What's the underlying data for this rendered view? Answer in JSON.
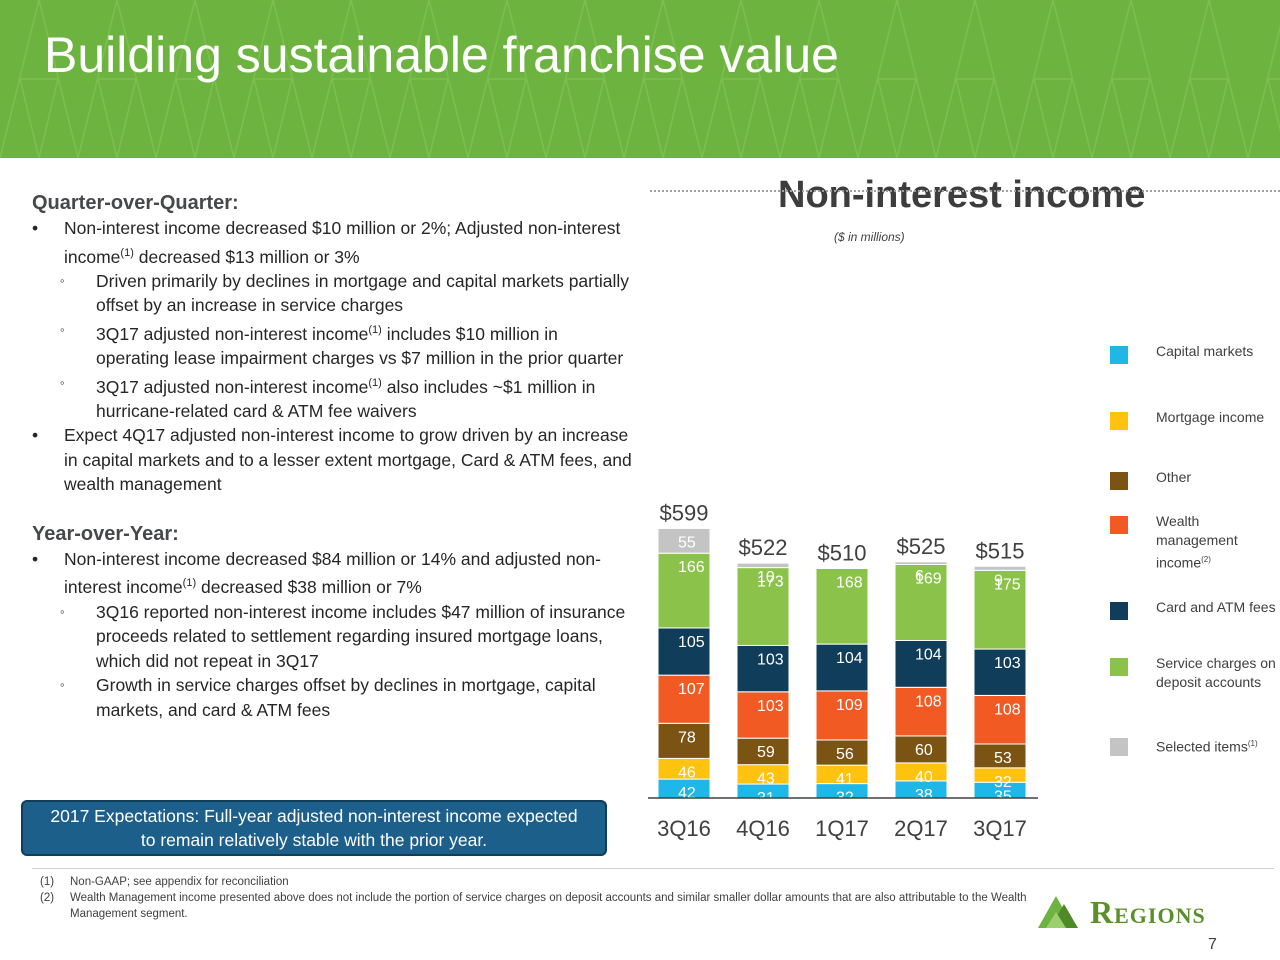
{
  "header": {
    "title": "Building sustainable franchise value"
  },
  "left": {
    "qoq_head": "Quarter-over-Quarter:",
    "qoq_b1": "Non-interest income decreased $10 million or 2%;  Adjusted non-interest income",
    "qoq_b1_sup": "(1)",
    "qoq_b1_tail": " decreased $13 million or 3%",
    "qoq_s1": "Driven primarily by declines in mortgage and capital markets partially offset by an increase in service charges",
    "qoq_s2a": "3Q17 adjusted non-interest income",
    "qoq_s2_sup": "(1)",
    "qoq_s2b": " includes $10 million in operating lease impairment charges vs $7 million in the prior quarter",
    "qoq_s3a": "3Q17 adjusted non-interest income",
    "qoq_s3_sup": "(1)",
    "qoq_s3b": " also includes ~$1 million in hurricane-related card & ATM fee waivers",
    "qoq_b2": "Expect 4Q17 adjusted non-interest income to grow driven by an increase in capital markets and to a lesser extent mortgage, Card & ATM fees, and wealth management",
    "yoy_head": "Year-over-Year:",
    "yoy_b1a": "Non-interest income decreased $84 million or 14% and adjusted non-interest income",
    "yoy_b1_sup": "(1)",
    "yoy_b1b": " decreased $38 million or 7%",
    "yoy_s1": "3Q16 reported non-interest income includes $47 million of insurance proceeds related to settlement regarding insured mortgage loans, which did not repeat in 3Q17",
    "yoy_s2": "Growth in service charges offset by declines in mortgage, capital markets, and card & ATM fees",
    "bullet": "•",
    "sub_bullet": "◦"
  },
  "expectations": {
    "line1": "2017 Expectations: Full-year adjusted non-interest income expected",
    "line2": "to remain relatively stable with the prior year."
  },
  "chart_data": {
    "type": "bar",
    "stacked": true,
    "title": "Non-interest income",
    "subtitle": "($ in millions)",
    "categories": [
      "3Q16",
      "4Q16",
      "1Q17",
      "2Q17",
      "3Q17"
    ],
    "totals": [
      "$599",
      "$522",
      "$510",
      "$525",
      "$515"
    ],
    "total_values": [
      599,
      522,
      510,
      525,
      515
    ],
    "series": [
      {
        "name": "Capital markets",
        "color": "#1fb6e8",
        "values": [
          42,
          31,
          32,
          38,
          35
        ]
      },
      {
        "name": "Mortgage income",
        "color": "#ffc20e",
        "values": [
          46,
          43,
          41,
          40,
          32
        ]
      },
      {
        "name": "Other",
        "color": "#7b5414",
        "values": [
          78,
          59,
          56,
          60,
          53
        ]
      },
      {
        "name": "Wealth management income",
        "name_sup": "(2)",
        "color": "#f15a22",
        "values": [
          107,
          103,
          109,
          108,
          108
        ]
      },
      {
        "name": "Card and ATM fees",
        "color": "#0f3d5a",
        "values": [
          105,
          103,
          104,
          104,
          103
        ]
      },
      {
        "name": "Service charges on deposit accounts",
        "color": "#8bc34a",
        "values": [
          166,
          173,
          168,
          169,
          175
        ]
      },
      {
        "name": "Selected items",
        "name_sup": "(1)",
        "color": "#c4c4c4",
        "values": [
          55,
          10,
          null,
          6,
          9
        ]
      }
    ],
    "legend": {
      "position": "right",
      "entries": [
        {
          "label": "Capital markets",
          "color": "#1fb6e8"
        },
        {
          "label": "Mortgage income",
          "color": "#ffc20e"
        },
        {
          "label": "Other",
          "color": "#7b5414"
        },
        {
          "label": "Wealth management income",
          "sup": "(2)",
          "color": "#f15a22"
        },
        {
          "label": "Card and ATM fees",
          "color": "#0f3d5a"
        },
        {
          "label": "Service charges on deposit accounts",
          "color": "#8bc34a"
        },
        {
          "label": "Selected items",
          "sup": "(1)",
          "color": "#c4c4c4"
        }
      ]
    }
  },
  "footnotes": [
    {
      "num": "(1)",
      "text": "Non-GAAP; see appendix for reconciliation"
    },
    {
      "num": "(2)",
      "text": "Wealth Management income presented above does not include the portion of service charges on deposit accounts and similar smaller dollar amounts that are also attributable to the Wealth Management segment."
    }
  ],
  "logo": {
    "text": "Regions"
  },
  "page_number": "7"
}
